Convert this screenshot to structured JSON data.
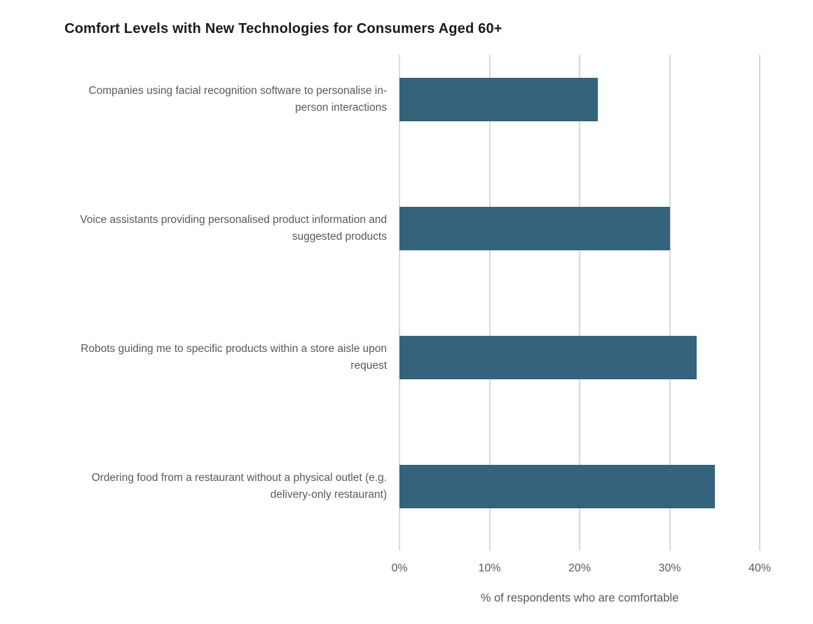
{
  "page": {
    "background": "#ffffff"
  },
  "chart_data": {
    "type": "bar",
    "orientation": "horizontal",
    "title": "Comfort Levels with New Technologies for Consumers Aged 60+",
    "categories": [
      "Companies using facial recognition software to personalise in-person interactions",
      "Voice assistants providing personalised product information and suggested products",
      "Robots guiding me to specific products within a store aisle upon request",
      "Ordering food from a restaurant without a physical outlet (e.g. delivery-only restaurant)"
    ],
    "values": [
      22,
      30,
      33,
      35
    ],
    "unit": "%",
    "xlabel": "% of respondents who are comfortable",
    "ylabel": "",
    "xlim": [
      0,
      40
    ],
    "xticks": [
      "0%",
      "10%",
      "20%",
      "30%",
      "40%"
    ],
    "grid": "vertical-only",
    "legend": "none",
    "data_labels": "none",
    "colors": {
      "bar": "#35637B",
      "gridline": "#D9D9D9",
      "axis_text": "#595959",
      "category_text": "#595959",
      "title_text": "#1A1A1A"
    }
  }
}
